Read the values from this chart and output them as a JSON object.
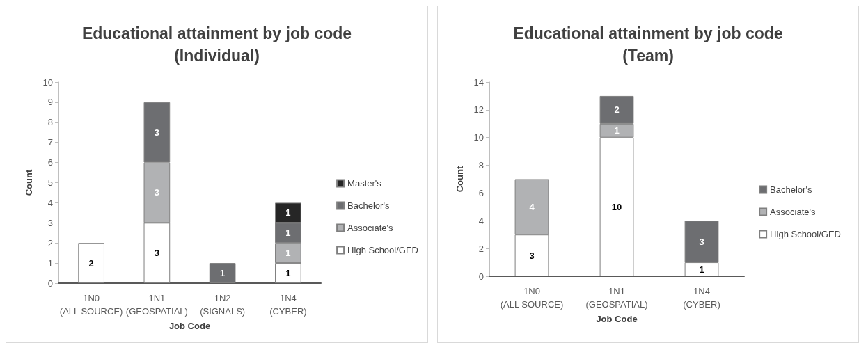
{
  "chart_data": [
    {
      "type": "bar",
      "title": "Educational attainment by job code\n(Individual)",
      "xlabel": "Job Code",
      "ylabel": "Count",
      "categories": [
        "1N0\n(ALL SOURCE)",
        "1N1\n(GEOSPATIAL)",
        "1N2\n(SIGNALS)",
        "1N4\n(CYBER)"
      ],
      "series": [
        {
          "name": "High School/GED",
          "color": "#ffffff",
          "values": [
            2,
            3,
            null,
            1
          ]
        },
        {
          "name": "Associate's",
          "color": "#b1b2b4",
          "values": [
            null,
            3,
            null,
            1
          ]
        },
        {
          "name": "Bachelor's",
          "color": "#6d6e71",
          "values": [
            null,
            3,
            1,
            1
          ]
        },
        {
          "name": "Master's",
          "color": "#262626",
          "values": [
            null,
            null,
            null,
            1
          ]
        }
      ],
      "stacked": true,
      "data_labels": true,
      "ylim": [
        0,
        10
      ],
      "yticks": [
        0,
        1,
        2,
        3,
        4,
        5,
        6,
        7,
        8,
        9,
        10
      ],
      "grid": false,
      "legend": "right"
    },
    {
      "type": "bar",
      "title": "Educational attainment by job code\n(Team)",
      "xlabel": "Job Code",
      "ylabel": "Count",
      "categories": [
        "1N0\n(ALL SOURCE)",
        "1N1\n(GEOSPATIAL)",
        "1N4\n(CYBER)"
      ],
      "series": [
        {
          "name": "High School/GED",
          "color": "#ffffff",
          "values": [
            3,
            10,
            1
          ]
        },
        {
          "name": "Associate's",
          "color": "#b1b2b4",
          "values": [
            4,
            1,
            null
          ]
        },
        {
          "name": "Bachelor's",
          "color": "#6d6e71",
          "values": [
            null,
            2,
            3
          ]
        }
      ],
      "stacked": true,
      "data_labels": true,
      "ylim": [
        0,
        14
      ],
      "yticks": [
        0,
        2,
        4,
        6,
        8,
        10,
        12,
        14
      ],
      "grid": false,
      "legend": "right"
    }
  ]
}
